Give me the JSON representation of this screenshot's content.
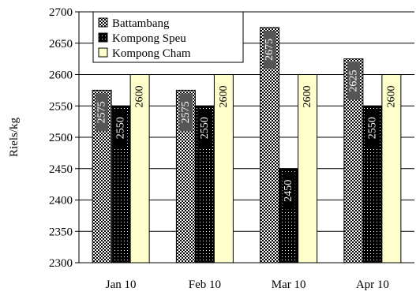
{
  "chart_data": {
    "type": "bar",
    "title": "",
    "xlabel": "",
    "ylabel": "Riels/kg",
    "ylim": [
      2300,
      2700
    ],
    "ytick_step": 50,
    "grid": true,
    "legend_position": "top-left",
    "categories": [
      "Jan 10",
      "Feb 10",
      "Mar 10",
      "Apr 10"
    ],
    "series": [
      {
        "name": "Battambang",
        "values": [
          2575,
          2575,
          2675,
          2625
        ],
        "pattern": "checker",
        "color": "#555555"
      },
      {
        "name": "Kompong Speu",
        "values": [
          2550,
          2550,
          2450,
          2550
        ],
        "pattern": "dots",
        "color": "#000000"
      },
      {
        "name": "Kompong Cham",
        "values": [
          2600,
          2600,
          2600,
          2600
        ],
        "pattern": "solid",
        "color": "#ffffcc"
      }
    ],
    "data_labels": [
      [
        "2575",
        "2575",
        "2675",
        "2625"
      ],
      [
        "2550",
        "2550",
        "2450",
        "2550"
      ],
      [
        "2600",
        "2600",
        "2600",
        "2600"
      ]
    ]
  }
}
